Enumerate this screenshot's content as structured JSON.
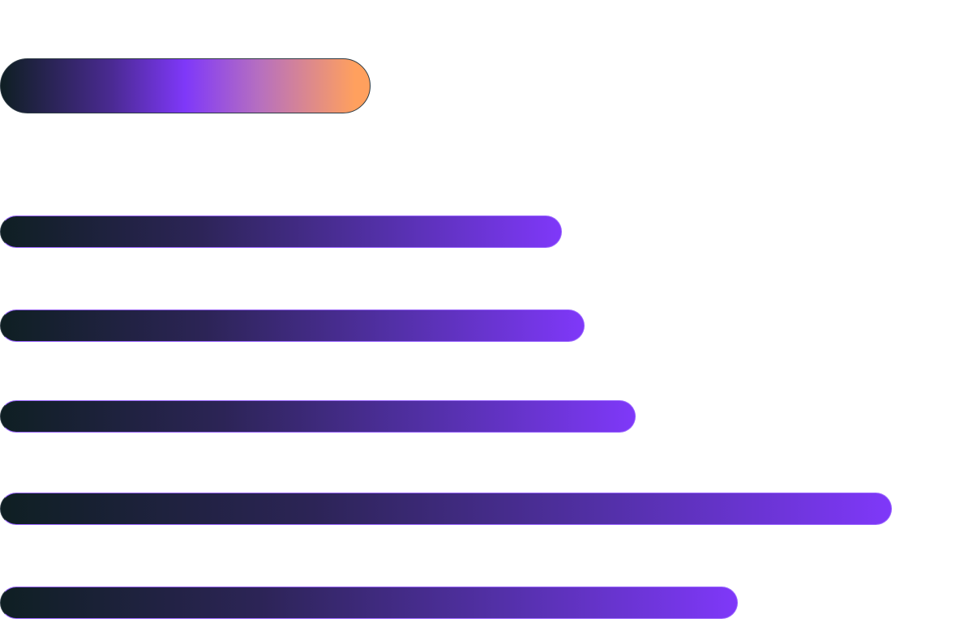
{
  "colors": {
    "background": "#ffffff",
    "dark": "#0f1f23",
    "purple": "#7f38f9",
    "orange": "#ffa05e",
    "border_dark": "#2c3a43",
    "border_purple": "#9a66ff"
  },
  "bars": [
    {
      "id": "bar-1",
      "relative_length": 0.63
    },
    {
      "id": "bar-2",
      "relative_length": 0.655
    },
    {
      "id": "bar-3",
      "relative_length": 0.713
    },
    {
      "id": "bar-4",
      "relative_length": 1.0
    },
    {
      "id": "bar-5",
      "relative_length": 0.827
    }
  ]
}
